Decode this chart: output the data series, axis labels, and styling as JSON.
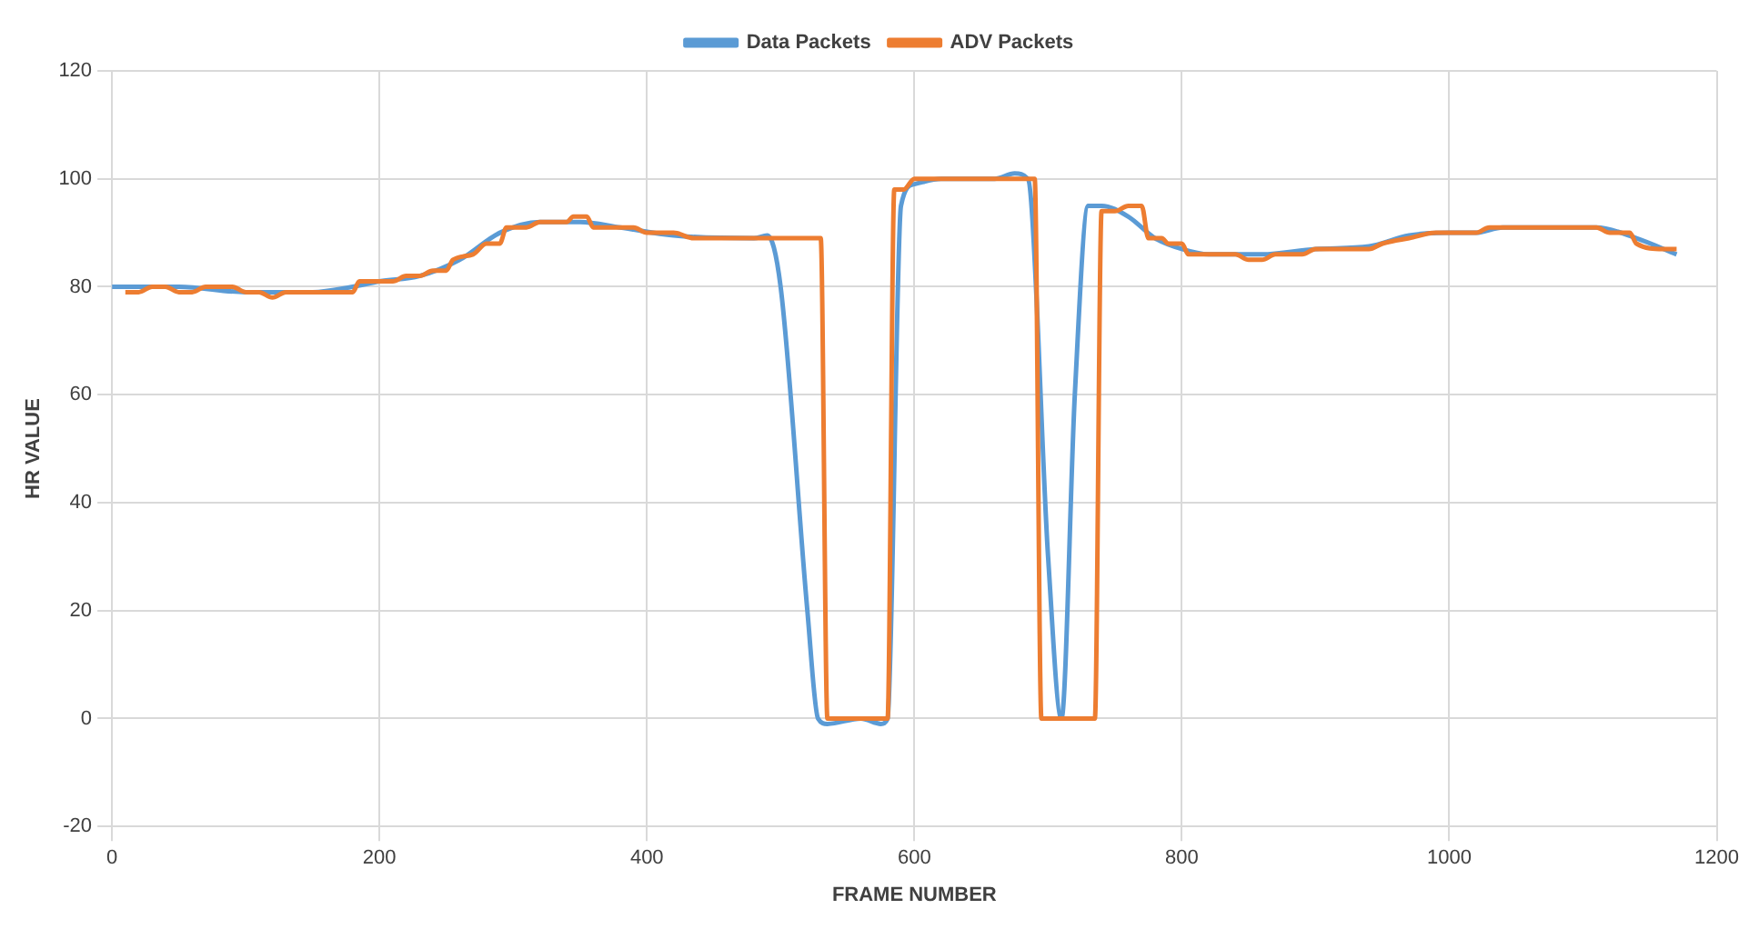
{
  "chart_data": {
    "type": "line",
    "xlabel": "FRAME NUMBER",
    "ylabel": "HR VALUE",
    "xlim": [
      0,
      1200
    ],
    "xticks": [
      0,
      200,
      400,
      600,
      800,
      1000,
      1200
    ],
    "ylim": [
      -20,
      120
    ],
    "yticks": [
      -20,
      0,
      20,
      40,
      60,
      80,
      100,
      120
    ],
    "grid": true,
    "legend": "top",
    "marker": "none",
    "line_style": "solid",
    "series": [
      {
        "name": "Data Packets",
        "color": "#5b9bd5",
        "x": [
          0,
          50,
          100,
          150,
          180,
          200,
          230,
          260,
          290,
          320,
          350,
          380,
          420,
          480,
          490,
          500,
          520,
          528,
          535,
          560,
          575,
          580,
          590,
          600,
          620,
          660,
          675,
          685,
          700,
          710,
          720,
          730,
          740,
          760,
          780,
          800,
          820,
          860,
          900,
          940,
          970,
          1000,
          1020,
          1040,
          1110,
          1140,
          1170
        ],
        "values": [
          80,
          80,
          79,
          79,
          80,
          81,
          82,
          85,
          90,
          92,
          92,
          91,
          89.5,
          89,
          89.5,
          80,
          20,
          0,
          -1,
          0,
          -1,
          0,
          95,
          99,
          100,
          100,
          101,
          100,
          30,
          0,
          60,
          95,
          95,
          93,
          89,
          87,
          86,
          86,
          87,
          87.5,
          89.5,
          90,
          90,
          91,
          91,
          89,
          86
        ]
      },
      {
        "name": "ADV Packets",
        "color": "#ed7d31",
        "x": [
          10,
          20,
          30,
          40,
          50,
          60,
          70,
          90,
          100,
          110,
          120,
          130,
          180,
          185,
          210,
          220,
          230,
          240,
          250,
          255,
          270,
          280,
          290,
          295,
          310,
          320,
          340,
          345,
          355,
          360,
          390,
          400,
          420,
          435,
          480,
          530,
          535,
          580,
          585,
          592,
          600,
          680,
          690,
          695,
          735,
          740,
          750,
          760,
          770,
          775,
          785,
          790,
          800,
          805,
          840,
          850,
          860,
          870,
          890,
          900,
          940,
          950,
          970,
          990,
          1020,
          1030,
          1110,
          1120,
          1135,
          1140,
          1160,
          1170
        ],
        "values": [
          79,
          79,
          80,
          80,
          79,
          79,
          80,
          80,
          79,
          79,
          78,
          79,
          79,
          81,
          81,
          82,
          82,
          83,
          83,
          85,
          86,
          88,
          88,
          91,
          91,
          92,
          92,
          93,
          93,
          91,
          91,
          90,
          90,
          89,
          89,
          89,
          0,
          0,
          98,
          98,
          100,
          100,
          100,
          0,
          0,
          94,
          94,
          95,
          95,
          89,
          89,
          88,
          88,
          86,
          86,
          85,
          85,
          86,
          86,
          87,
          87,
          88,
          89,
          90,
          90,
          91,
          91,
          90,
          90,
          88,
          87,
          87
        ]
      }
    ]
  }
}
